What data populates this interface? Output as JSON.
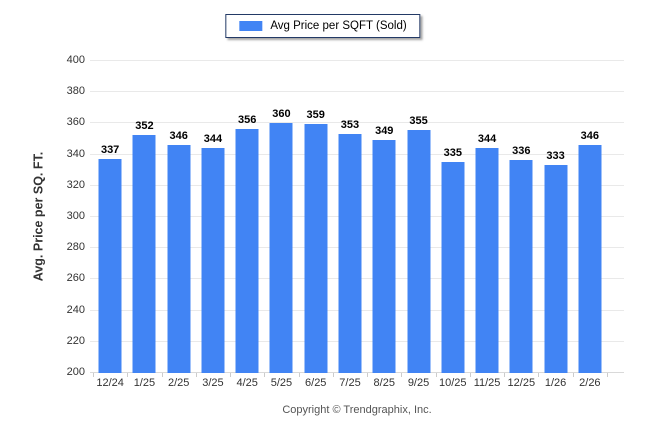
{
  "legend": {
    "label": "Avg Price per SQFT (Sold)",
    "swatch_color": "#4184f4"
  },
  "footer": {
    "copyright": "Copyright © Trendgraphix, Inc."
  },
  "chart_data": {
    "type": "bar",
    "title": "",
    "series_name": "Avg Price per SQFT (Sold)",
    "categories": [
      "12/24",
      "1/25",
      "2/25",
      "3/25",
      "4/25",
      "5/25",
      "6/25",
      "7/25",
      "8/25",
      "9/25",
      "10/25",
      "11/25",
      "12/25",
      "1/26",
      "2/26"
    ],
    "values": [
      337,
      352,
      346,
      344,
      356,
      360,
      359,
      353,
      349,
      355,
      335,
      344,
      336,
      333,
      346
    ],
    "xlabel": "",
    "ylabel": "Avg. Price per SQ. FT.",
    "ylim": [
      200,
      400
    ],
    "ytick_step": 20,
    "yticks": [
      400,
      380,
      360,
      340,
      320,
      300,
      280,
      260,
      240,
      220,
      200
    ],
    "bar_color": "#4184f4",
    "grid": true,
    "legend_position": "top",
    "value_labels": true
  }
}
